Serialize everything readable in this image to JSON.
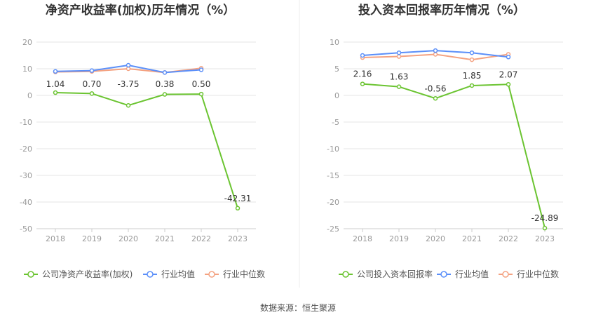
{
  "source_text": "数据来源：恒生聚源",
  "colors": {
    "company": "#6bc431",
    "industry_avg": "#5b8ff9",
    "industry_median": "#f4a281",
    "grid": "#e6e6e6",
    "axis": "#cccccc"
  },
  "chart_data": [
    {
      "type": "line",
      "title": "净资产收益率(加权)历年情况（%）",
      "categories": [
        "2018",
        "2019",
        "2020",
        "2021",
        "2022",
        "2023"
      ],
      "ylim": [
        -50,
        20
      ],
      "yticks": [
        20,
        10,
        0,
        -10,
        -20,
        -30,
        -40,
        -50
      ],
      "grid": true,
      "legend_position": "bottom-left",
      "series": [
        {
          "name": "公司净资产收益率(加权)",
          "values": [
            1.04,
            0.7,
            -3.75,
            0.38,
            0.5,
            -42.31
          ],
          "labels": [
            "1.04",
            "0.70",
            "-3.75",
            "0.38",
            "0.50",
            "-42.31"
          ]
        },
        {
          "name": "行业均值",
          "values": [
            9.0,
            9.3,
            11.3,
            8.6,
            9.6,
            null
          ]
        },
        {
          "name": "行业中位数",
          "values": [
            8.8,
            9.0,
            10.0,
            8.6,
            10.2,
            null
          ]
        }
      ]
    },
    {
      "type": "line",
      "title": "投入资本回报率历年情况（%）",
      "categories": [
        "2018",
        "2019",
        "2020",
        "2021",
        "2022",
        "2023"
      ],
      "ylim": [
        -25,
        10
      ],
      "yticks": [
        10,
        5,
        0,
        -5,
        -10,
        -15,
        -20,
        -25
      ],
      "grid": true,
      "legend_position": "bottom-left",
      "series": [
        {
          "name": "公司投入资本回报率",
          "values": [
            2.16,
            1.63,
            -0.56,
            1.85,
            2.07,
            -24.89
          ],
          "labels": [
            "2.16",
            "1.63",
            "-0.56",
            "1.85",
            "2.07",
            "-24.89"
          ]
        },
        {
          "name": "行业均值",
          "values": [
            7.5,
            8.0,
            8.4,
            8.0,
            7.2,
            null
          ]
        },
        {
          "name": "行业中位数",
          "values": [
            7.1,
            7.3,
            7.7,
            6.7,
            7.7,
            null
          ]
        }
      ]
    }
  ]
}
